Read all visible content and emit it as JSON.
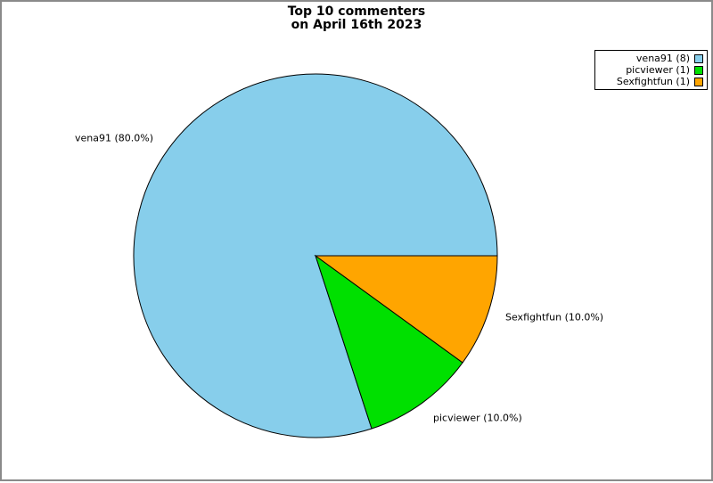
{
  "title": {
    "line1": "Top 10 commenters",
    "line2": "on April 16th 2023"
  },
  "chart_data": {
    "type": "pie",
    "title": "Top 10 commenters on April 16th 2023",
    "start_angle_deg": 0,
    "direction": "counterclockwise",
    "legend_position": "upper right",
    "edge_color": "#000000",
    "slices": [
      {
        "name": "vena91",
        "count": 8,
        "percent": 80.0,
        "label": "vena91 (80.0%)",
        "legend_label": "vena91 (8)",
        "color": "#87CEEB"
      },
      {
        "name": "picviewer",
        "count": 1,
        "percent": 10.0,
        "label": "picviewer (10.0%)",
        "legend_label": "picviewer (1)",
        "color": "#00E000"
      },
      {
        "name": "Sexfightfun",
        "count": 1,
        "percent": 10.0,
        "label": "Sexfightfun (10.0%)",
        "legend_label": "Sexfightfun (1)",
        "color": "#FFA500"
      }
    ]
  },
  "colors": {
    "background": "#ffffff",
    "figure_border": "#8a8a8a",
    "legend_border": "#000000"
  }
}
